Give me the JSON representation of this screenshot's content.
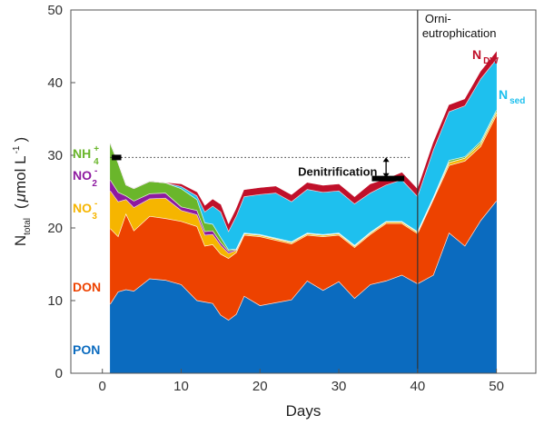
{
  "chart_data": {
    "type": "area",
    "stacked": true,
    "xlabel": "Days",
    "ylabel": {
      "main": "N",
      "sub": "total",
      "unit_prefix": "(",
      "mu": "μ",
      "unit": "mol L",
      "exp": "-1",
      "unit_suffix": ")"
    },
    "xlim": [
      -4,
      55
    ],
    "ylim": [
      0,
      50
    ],
    "xticks": [
      0,
      10,
      20,
      30,
      40,
      50
    ],
    "yticks": [
      0,
      10,
      20,
      30,
      40,
      50
    ],
    "x": [
      1,
      2,
      3,
      4,
      6,
      8,
      10,
      12,
      13,
      14,
      15,
      16,
      17,
      18,
      20,
      22,
      24,
      26,
      28,
      30,
      32,
      34,
      36,
      38,
      40,
      42,
      44,
      46,
      48,
      50
    ],
    "series": [
      {
        "key": "PON",
        "color": "#0b6bbf",
        "values": [
          9.5,
          11.2,
          11.5,
          11.3,
          13.0,
          12.8,
          12.2,
          10.0,
          9.8,
          9.6,
          8.0,
          7.3,
          8.1,
          10.6,
          9.3,
          9.7,
          10.1,
          12.7,
          11.4,
          12.6,
          10.3,
          12.2,
          12.7,
          13.5,
          12.3,
          13.5,
          19.3,
          17.5,
          21.0,
          23.7
        ]
      },
      {
        "key": "DON",
        "color": "#ed4200",
        "values": [
          10.4,
          7.6,
          10.4,
          8.3,
          8.6,
          8.5,
          8.7,
          10.2,
          7.7,
          8.1,
          8.4,
          8.5,
          8.5,
          8.4,
          9.5,
          8.6,
          7.7,
          6.3,
          7.4,
          6.4,
          7.0,
          6.9,
          7.9,
          7.1,
          6.9,
          10.4,
          9.3,
          11.7,
          10.2,
          11.8
        ]
      },
      {
        "key": "NO3",
        "color": "#f6b500",
        "values": [
          5.2,
          4.8,
          2.0,
          3.2,
          2.4,
          2.8,
          1.5,
          1.6,
          1.5,
          1.4,
          1.2,
          0.7,
          0.3,
          0.2,
          0.2,
          0.2,
          0.2,
          0.2,
          0.2,
          0.2,
          0.2,
          0.2,
          0.2,
          0.2,
          0.2,
          0.2,
          0.4,
          0.4,
          0.4,
          0.4
        ]
      },
      {
        "key": "NO2",
        "color": "#8e1aa0",
        "values": [
          1.5,
          1.3,
          0.5,
          0.9,
          0.7,
          0.7,
          0.5,
          0.6,
          0.5,
          0.5,
          0.4,
          0.3,
          0.1,
          0.0,
          0.0,
          0.0,
          0.0,
          0.0,
          0.0,
          0.0,
          0.0,
          0.0,
          0.0,
          0.0,
          0.0,
          0.0,
          0.0,
          0.0,
          0.0,
          0.0
        ]
      },
      {
        "key": "NH4",
        "color": "#6ab62b",
        "values": [
          5.0,
          4.0,
          1.5,
          1.7,
          1.7,
          1.4,
          2.5,
          1.5,
          1.2,
          0.9,
          0.7,
          0.2,
          0.1,
          0.1,
          0.1,
          0.1,
          0.1,
          0.1,
          0.1,
          0.1,
          0.1,
          0.1,
          0.1,
          0.1,
          0.1,
          0.1,
          0.3,
          0.2,
          0.3,
          0.3
        ]
      },
      {
        "key": "Nsed",
        "color": "#1ec0ee",
        "values": [
          0.0,
          0.0,
          0.0,
          0.0,
          0.0,
          0.0,
          0.3,
          0.5,
          1.5,
          2.5,
          3.5,
          2.5,
          4.5,
          5.0,
          5.5,
          6.2,
          5.5,
          6.0,
          5.8,
          5.8,
          5.7,
          5.4,
          5.0,
          5.7,
          4.8,
          6.5,
          6.7,
          7.0,
          8.6,
          7.0
        ]
      },
      {
        "key": "NDW",
        "color": "#c0102a",
        "values": [
          0.0,
          0.0,
          0.0,
          0.0,
          0.0,
          0.0,
          0.3,
          0.5,
          0.8,
          0.9,
          1.0,
          0.9,
          1.0,
          0.9,
          0.9,
          0.9,
          0.9,
          0.9,
          0.9,
          0.9,
          0.9,
          1.2,
          0.8,
          1.0,
          1.0,
          1.0,
          0.9,
          0.9,
          1.0,
          1.0
        ]
      }
    ],
    "annotations": {
      "orni_line_x": 40,
      "dotted_level_y": 29.7,
      "dotted_x_range": [
        1,
        39
      ],
      "initial_marker": {
        "x": [
          1.2,
          2.4
        ],
        "y": 29.7
      },
      "denitrification_marker": {
        "x": [
          34.2,
          38.3
        ],
        "y": 26.8
      },
      "denitrification_arrow": {
        "x": 36.0,
        "y_from": 26.9,
        "y_to": 29.6
      },
      "orni_text_line1": "Orni-",
      "orni_text_line2": "eutrophication",
      "denitrification_text": "Denitrification"
    },
    "labels": {
      "PON": {
        "main": "PON",
        "color": "#0b6bbf"
      },
      "DON": {
        "main": "DON",
        "color": "#ed4200"
      },
      "NO3": {
        "main": "NO",
        "sub": "3",
        "sup": "-",
        "color": "#f6b500"
      },
      "NO2": {
        "main": "NO",
        "sub": "2",
        "sup": "-",
        "color": "#8e1aa0"
      },
      "NH4": {
        "main": "NH",
        "sub": "4",
        "sup": "+",
        "color": "#6ab62b"
      },
      "Nsed": {
        "main": "N",
        "sub": "sed",
        "color": "#1ec0ee"
      },
      "NDW": {
        "main": "N",
        "sub": "DW",
        "color": "#c0102a"
      }
    }
  }
}
